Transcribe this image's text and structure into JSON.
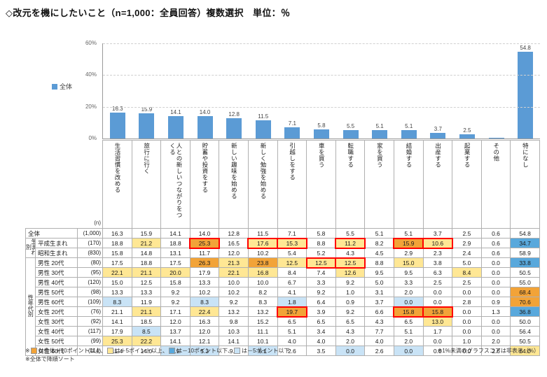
{
  "title": "◇改元を機にしたいこと（n=1,000：全員回答）複数選択　単位：％",
  "legend": {
    "label": "全体"
  },
  "colors": {
    "bar": "#5B9BD5",
    "plus10": "#F2A338",
    "plus5": "#FFE794",
    "minus10": "#58A8DC",
    "minus5": "#C9E3F6",
    "red": "#FF0000"
  },
  "chart_data": {
    "type": "bar",
    "title": "改元を機にしたいこと（全体）",
    "categories": [
      "生活習慣を改める",
      "旅行に行く",
      "人との新しいつながりをつくる",
      "貯蓄や投資をする",
      "新しい趣味を始める",
      "新しく勉強を始める",
      "引越しをする",
      "車を買う",
      "転職する",
      "家を買う",
      "結婚する",
      "出産する",
      "起業する",
      "その他",
      "特になし"
    ],
    "values": [
      16.3,
      15.9,
      14.1,
      14.0,
      12.8,
      11.5,
      7.1,
      5.8,
      5.5,
      5.1,
      5.1,
      3.7,
      2.5,
      0.6,
      54.8
    ],
    "ylim": [
      0,
      60
    ],
    "ytick_labels": [
      "0%",
      "20%",
      "40%",
      "60%"
    ],
    "grid": "dashed-horizontal",
    "legend_position": "left",
    "value_labels_hidden_below": 1
  },
  "table": {
    "n_label": "(n)",
    "groups": [
      {
        "label": "生まれ別",
        "start": 1,
        "span": 2
      },
      {
        "label": "性年代別",
        "start": 3,
        "span": 10
      }
    ],
    "rows": [
      {
        "label": "全体",
        "n": "(1,000)",
        "values": [
          16.3,
          15.9,
          14.1,
          14.0,
          12.8,
          11.5,
          7.1,
          5.8,
          5.5,
          5.1,
          5.1,
          3.7,
          2.5,
          0.6,
          54.8
        ]
      },
      {
        "label": "平成生まれ",
        "n": "(170)",
        "values": [
          18.8,
          21.2,
          18.8,
          25.3,
          16.5,
          17.6,
          15.3,
          8.8,
          11.2,
          8.2,
          15.9,
          10.6,
          2.9,
          0.6,
          34.7
        ]
      },
      {
        "label": "昭和生まれ",
        "n": "(830)",
        "values": [
          15.8,
          14.8,
          13.1,
          11.7,
          12.0,
          10.2,
          5.4,
          5.2,
          4.3,
          4.5,
          2.9,
          2.3,
          2.4,
          0.6,
          58.9
        ]
      },
      {
        "label": "男性 20代",
        "n": "(80)",
        "values": [
          17.5,
          18.8,
          17.5,
          26.3,
          21.3,
          23.8,
          12.5,
          12.5,
          12.5,
          8.8,
          15.0,
          3.8,
          5.0,
          0.0,
          33.8
        ]
      },
      {
        "label": "男性 30代",
        "n": "(95)",
        "values": [
          22.1,
          21.1,
          20.0,
          17.9,
          22.1,
          16.8,
          8.4,
          7.4,
          12.6,
          9.5,
          9.5,
          6.3,
          8.4,
          0.0,
          50.5
        ]
      },
      {
        "label": "男性 40代",
        "n": "(120)",
        "values": [
          15.0,
          12.5,
          15.8,
          13.3,
          10.0,
          10.0,
          6.7,
          3.3,
          9.2,
          5.0,
          3.3,
          2.5,
          2.5,
          0.0,
          55.0
        ]
      },
      {
        "label": "男性 50代",
        "n": "(98)",
        "values": [
          13.3,
          13.3,
          9.2,
          10.2,
          10.2,
          8.2,
          4.1,
          9.2,
          1.0,
          3.1,
          2.0,
          0.0,
          0.0,
          0.0,
          68.4
        ]
      },
      {
        "label": "男性 60代",
        "n": "(109)",
        "values": [
          8.3,
          11.9,
          9.2,
          8.3,
          9.2,
          8.3,
          1.8,
          6.4,
          0.9,
          3.7,
          0.0,
          0.0,
          2.8,
          0.9,
          70.6
        ]
      },
      {
        "label": "女性 20代",
        "n": "(76)",
        "values": [
          21.1,
          21.1,
          17.1,
          22.4,
          13.2,
          13.2,
          19.7,
          3.9,
          9.2,
          6.6,
          15.8,
          15.8,
          0.0,
          1.3,
          36.8
        ]
      },
      {
        "label": "女性 30代",
        "n": "(92)",
        "values": [
          14.1,
          18.5,
          12.0,
          16.3,
          9.8,
          15.2,
          6.5,
          6.5,
          6.5,
          4.3,
          6.5,
          13.0,
          0.0,
          0.0,
          50.0
        ]
      },
      {
        "label": "女性 40代",
        "n": "(117)",
        "values": [
          17.9,
          8.5,
          13.7,
          12.0,
          10.3,
          11.1,
          5.1,
          3.4,
          4.3,
          7.7,
          5.1,
          1.7,
          0.0,
          0.0,
          56.4
        ]
      },
      {
        "label": "女性 50代",
        "n": "(99)",
        "values": [
          25.3,
          22.2,
          14.1,
          12.1,
          14.1,
          10.1,
          4.0,
          4.0,
          2.0,
          4.0,
          2.0,
          0.0,
          1.0,
          2.0,
          50.5
        ]
      },
      {
        "label": "女性 60代",
        "n": "(114)",
        "values": [
          11.4,
          14.0,
          7.9,
          5.3,
          9.8,
          6.1,
          2.6,
          3.5,
          0.0,
          2.6,
          0.0,
          0.0,
          0.0,
          2.6,
          64.0
        ]
      }
    ],
    "highlight_thresholds": {
      "plus10": 10,
      "plus5": 5,
      "minus10": -10,
      "minus5": -5
    },
    "red_border_cells": [
      [
        1,
        3
      ],
      [
        1,
        5
      ],
      [
        1,
        6
      ],
      [
        1,
        8
      ],
      [
        1,
        10
      ],
      [
        1,
        11
      ],
      [
        3,
        7
      ],
      [
        3,
        8
      ],
      [
        8,
        6
      ],
      [
        8,
        10
      ],
      [
        8,
        11
      ]
    ]
  },
  "notes": {
    "threshold_note_segments": [
      {
        "text": "※"
      },
      {
        "swatch": "plus10",
        "text": "は全体＋10ポイント以上、"
      },
      {
        "swatch": "plus5",
        "text": "は＋5ポイント以上、"
      },
      {
        "swatch": "minus10",
        "text": "は－10ポイント以下、"
      },
      {
        "swatch": "minus5",
        "text": "は－5ポイント以下"
      }
    ],
    "right_note": "※1%未満のグラフスコアは非表示（%）",
    "sort_note": "※全体で降順ソート"
  }
}
